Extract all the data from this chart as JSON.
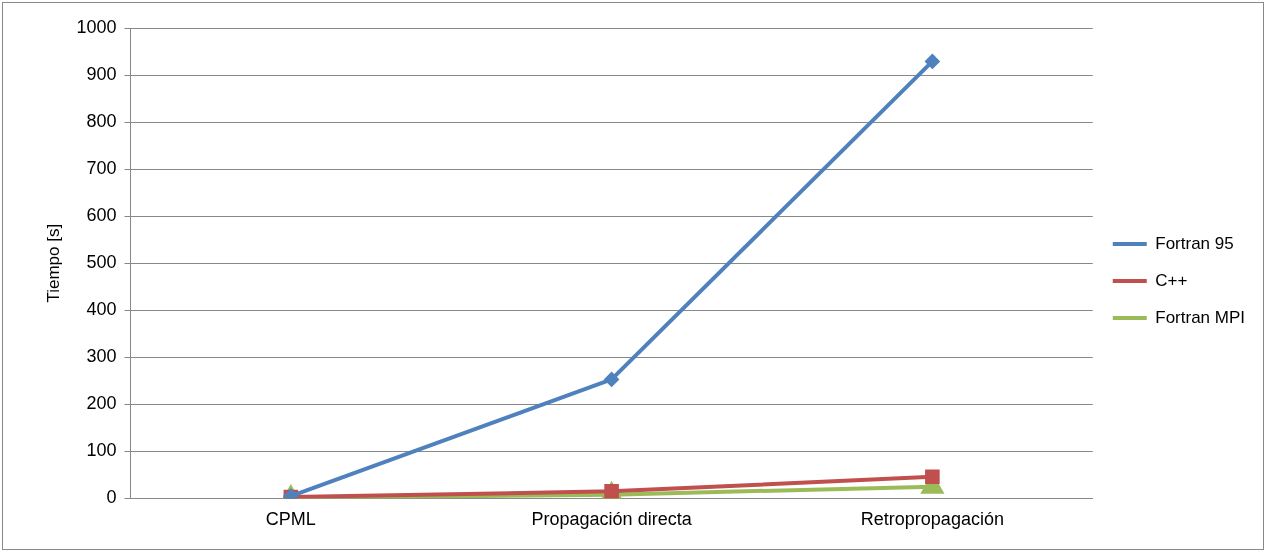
{
  "chart_data": {
    "type": "line",
    "ylabel": "Tiempo [s]",
    "categories": [
      "CPML",
      "Propagación directa",
      "Retropropagación"
    ],
    "series": [
      {
        "name": "Fortran 95",
        "color": "#4f81bd",
        "marker": "diamond",
        "values": [
          5,
          253,
          929
        ]
      },
      {
        "name": "C++",
        "color": "#c0504d",
        "marker": "square",
        "values": [
          3,
          15,
          46
        ]
      },
      {
        "name": "Fortran MPI",
        "color": "#9bbb59",
        "marker": "triangle",
        "values": [
          1,
          8,
          25
        ]
      }
    ],
    "ylim": [
      0,
      1000
    ],
    "yticks": [
      0,
      100,
      200,
      300,
      400,
      500,
      600,
      700,
      800,
      900,
      1000
    ],
    "grid": "y",
    "legend": "right"
  }
}
